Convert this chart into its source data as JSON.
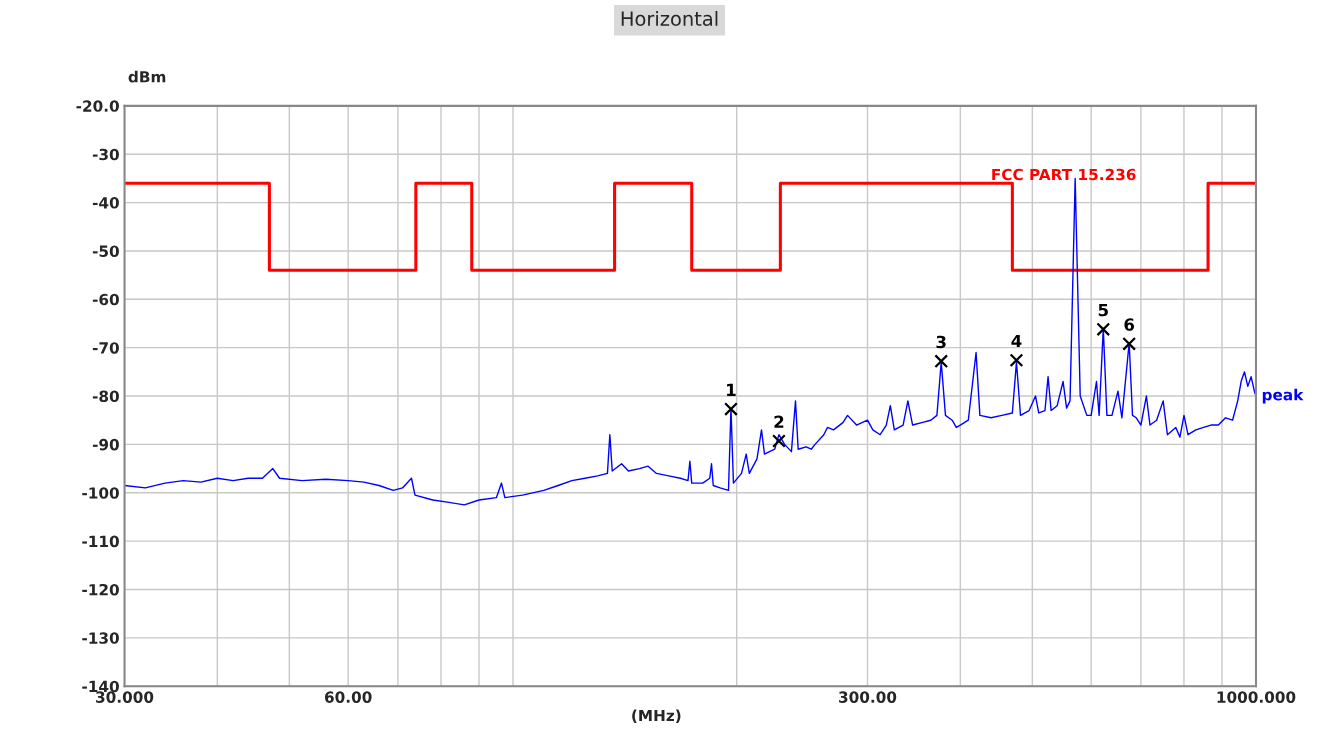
{
  "chart_data": {
    "type": "line",
    "title": "Horizontal",
    "xlabel": "(MHz)",
    "ylabel": "dBm",
    "log": "x",
    "grid": true,
    "legend": false,
    "xlim": [
      30,
      1000
    ],
    "ylim": [
      -140,
      -20
    ],
    "xticks": [
      {
        "value": 30,
        "label": "30.000"
      },
      {
        "value": 40,
        "label": null
      },
      {
        "value": 50,
        "label": null
      },
      {
        "value": 60,
        "label": "60.00"
      },
      {
        "value": 70,
        "label": null
      },
      {
        "value": 80,
        "label": null
      },
      {
        "value": 90,
        "label": null
      },
      {
        "value": 100,
        "label": null
      },
      {
        "value": 200,
        "label": null
      },
      {
        "value": 300,
        "label": "300.00"
      },
      {
        "value": 400,
        "label": null
      },
      {
        "value": 500,
        "label": null
      },
      {
        "value": 600,
        "label": null
      },
      {
        "value": 700,
        "label": null
      },
      {
        "value": 800,
        "label": null
      },
      {
        "value": 900,
        "label": null
      },
      {
        "value": 1000,
        "label": "1000.000"
      }
    ],
    "yticks": [
      {
        "value": -20,
        "label": "-20.0"
      },
      -30,
      -40,
      -50,
      -60,
      -70,
      -80,
      -90,
      -100,
      -110,
      -120,
      -130,
      -140
    ],
    "annotations": [
      {
        "text": "1",
        "x": 196.5,
        "y": -82.7
      },
      {
        "text": "2",
        "x": 228,
        "y": -89.3
      },
      {
        "text": "3",
        "x": 377,
        "y": -72.8
      },
      {
        "text": "4",
        "x": 476,
        "y": -72.6
      },
      {
        "text": "5",
        "x": 623,
        "y": -66.2
      },
      {
        "text": "6",
        "x": 675,
        "y": -69.2
      }
    ],
    "series": [
      {
        "type": "step",
        "name": "FCC PART 15.236",
        "color": "#ff0000",
        "x": [
          30,
          47,
          74,
          88,
          137,
          174,
          229,
          470,
          862,
          1000
        ],
        "values": [
          -36,
          -54,
          -36,
          -54,
          -36,
          -54,
          -36,
          -54,
          -36,
          -36
        ]
      },
      {
        "name": "peak",
        "color": "#0000ff",
        "x": [
          30,
          32,
          34,
          36,
          38,
          40,
          42,
          44,
          46,
          47.5,
          48.5,
          52,
          56,
          60,
          63,
          66,
          69,
          71,
          73,
          73.8,
          78,
          82,
          86,
          90,
          95,
          96.5,
          97.5,
          103,
          110,
          115,
          120,
          125,
          130,
          134,
          135,
          136,
          140,
          143,
          148,
          152,
          156,
          162,
          168,
          172,
          173,
          174,
          180,
          184,
          185,
          186,
          190,
          195,
          196.5,
          198,
          203,
          206,
          208,
          213,
          216,
          218,
          225,
          228,
          232,
          237,
          240,
          242,
          248,
          252,
          255,
          262,
          265,
          270,
          278,
          282,
          290,
          300,
          305,
          312,
          318,
          322,
          326,
          335,
          340,
          345,
          355,
          365,
          372,
          377,
          382,
          390,
          395,
          400,
          410,
          420,
          425,
          440,
          455,
          470,
          476,
          482,
          495,
          505,
          510,
          520,
          525,
          530,
          540,
          550,
          556,
          562,
          571,
          580,
          592,
          600,
          610,
          615,
          623,
          630,
          640,
          652,
          660,
          675,
          682,
          690,
          700,
          712,
          720,
          735,
          750,
          760,
          780,
          790,
          800,
          810,
          830,
          850,
          870,
          890,
          910,
          930,
          945,
          955,
          965,
          975,
          985,
          995,
          1000
        ],
        "values": [
          -98.5,
          -99,
          -98,
          -97.5,
          -97.8,
          -97,
          -97.5,
          -97,
          -97,
          -95,
          -97,
          -97.5,
          -97.2,
          -97.5,
          -97.8,
          -98.5,
          -99.5,
          -99,
          -97,
          -100.5,
          -101.5,
          -102,
          -102.5,
          -101.5,
          -101,
          -98,
          -101,
          -100.5,
          -99.5,
          -98.5,
          -97.5,
          -97,
          -96.5,
          -96,
          -88,
          -95.5,
          -94,
          -95.5,
          -95,
          -94.5,
          -96,
          -96.5,
          -97,
          -97.5,
          -93.5,
          -98,
          -98,
          -97,
          -94,
          -98.5,
          -99,
          -99.5,
          -82.5,
          -98,
          -96,
          -92,
          -96,
          -93,
          -87,
          -92,
          -91,
          -88,
          -90,
          -91.5,
          -81,
          -91,
          -90.5,
          -91,
          -90,
          -88,
          -86.5,
          -87,
          -85.5,
          -84,
          -86,
          -85,
          -87,
          -88,
          -86,
          -82,
          -87,
          -86,
          -81,
          -86,
          -85.5,
          -85,
          -84,
          -73,
          -84,
          -85,
          -86.5,
          -86,
          -85,
          -71,
          -84,
          -84.5,
          -84,
          -83.5,
          -73,
          -84,
          -83,
          -80,
          -83.5,
          -83,
          -76,
          -83,
          -82,
          -77,
          -82.5,
          -81,
          -35,
          -80,
          -84,
          -84,
          -77,
          -84,
          -66,
          -84,
          -84,
          -79,
          -84.5,
          -69,
          -84,
          -84.5,
          -86,
          -80,
          -86,
          -85,
          -81,
          -88,
          -86.5,
          -88.5,
          -84,
          -88,
          -87,
          -86.5,
          -86,
          -86,
          -84.5,
          -85,
          -81,
          -77,
          -75,
          -78,
          -76,
          -79,
          -80
        ]
      },
      {
        "type": "scatter",
        "color": "#000000",
        "marker": "cross",
        "x": [
          196.5,
          228,
          377,
          476,
          623,
          675
        ],
        "values": [
          -82.7,
          -89.3,
          -72.8,
          -72.6,
          -66.2,
          -69.2
        ]
      }
    ]
  }
}
